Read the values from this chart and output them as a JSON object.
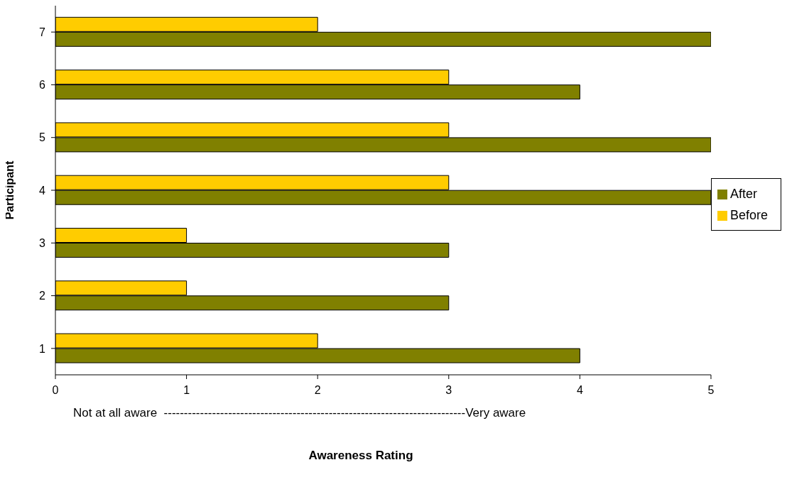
{
  "chart_data": {
    "type": "bar",
    "orientation": "horizontal",
    "categories": [
      "7",
      "6",
      "5",
      "4",
      "3",
      "2",
      "1"
    ],
    "series": [
      {
        "name": "Before",
        "color": "#ffcc00",
        "values": [
          2,
          3,
          3,
          3,
          1,
          1,
          2
        ]
      },
      {
        "name": "After",
        "color": "#808000",
        "values": [
          5,
          4,
          5,
          5,
          3,
          3,
          4
        ]
      }
    ],
    "xlim": [
      0,
      5
    ],
    "xticks": [
      0,
      1,
      2,
      3,
      4,
      5
    ],
    "xlabel": "Awareness Rating",
    "ylabel": "Participant",
    "annotations": [
      "Not at all aware  ---------------------------------------------------------------------------Very aware"
    ],
    "legend": "right",
    "grid": false
  }
}
